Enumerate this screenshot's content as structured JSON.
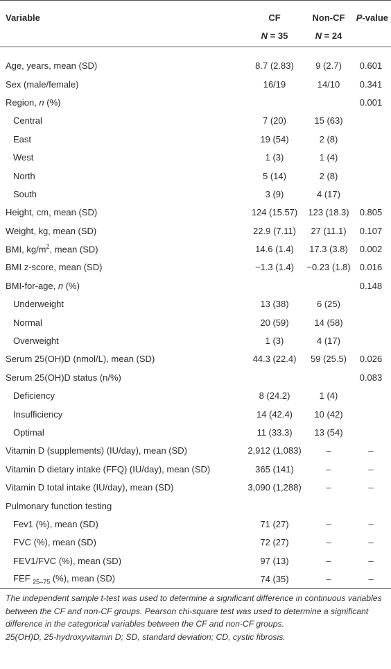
{
  "table": {
    "columns": [
      {
        "title": [
          "Variable"
        ]
      },
      {
        "title": [
          "CF"
        ],
        "n": [
          {
            "i": "N"
          },
          " = 35"
        ]
      },
      {
        "title": [
          "Non-CF"
        ],
        "n": [
          {
            "i": "N"
          },
          " = 24"
        ]
      },
      {
        "title": [
          {
            "i": "P"
          },
          "-value"
        ]
      }
    ],
    "rows": [
      {
        "label": [
          "Age, years, mean (SD)"
        ],
        "indent": false,
        "cells": [
          "8.7 (2.83)",
          "9 (2.7)",
          "0.601"
        ]
      },
      {
        "label": [
          "Sex (male/female)"
        ],
        "indent": false,
        "cells": [
          "16/19",
          "14/10",
          "0.341"
        ]
      },
      {
        "label": [
          "Region, ",
          {
            "i": "n"
          },
          " (%)"
        ],
        "indent": false,
        "cells": [
          null,
          null,
          "0.001"
        ]
      },
      {
        "label": [
          "Central"
        ],
        "indent": true,
        "cells": [
          "7 (20)",
          "15 (63)",
          null
        ]
      },
      {
        "label": [
          "East"
        ],
        "indent": true,
        "cells": [
          "19 (54)",
          "2 (8)",
          null
        ]
      },
      {
        "label": [
          "West"
        ],
        "indent": true,
        "cells": [
          "1 (3)",
          "1 (4)",
          null
        ]
      },
      {
        "label": [
          "North"
        ],
        "indent": true,
        "cells": [
          "5 (14)",
          "2 (8)",
          null
        ]
      },
      {
        "label": [
          "South"
        ],
        "indent": true,
        "cells": [
          "3 (9)",
          "4 (17)",
          null
        ]
      },
      {
        "label": [
          "Height, cm, mean (SD)"
        ],
        "indent": false,
        "cells": [
          "124 (15.57)",
          "123 (18.3)",
          "0.805"
        ]
      },
      {
        "label": [
          "Weight, kg, mean (SD)"
        ],
        "indent": false,
        "cells": [
          "22.9 (7.11)",
          "27 (11.1)",
          "0.107"
        ]
      },
      {
        "label": [
          "BMI, kg/m",
          {
            "sup": "2"
          },
          ", mean (SD)"
        ],
        "indent": false,
        "cells": [
          "14.6 (1.4)",
          "17.3 (3.8)",
          "0.002"
        ]
      },
      {
        "label": [
          "BMI z-score, mean (SD)"
        ],
        "indent": false,
        "cells": [
          "−1.3 (1.4)",
          "−0.23 (1.8)",
          "0.016"
        ]
      },
      {
        "label": [
          "BMI-for-age, ",
          {
            "i": "n"
          },
          " (%)"
        ],
        "indent": false,
        "cells": [
          null,
          null,
          "0.148"
        ]
      },
      {
        "label": [
          "Underweight"
        ],
        "indent": true,
        "cells": [
          "13 (38)",
          "6 (25)",
          null
        ]
      },
      {
        "label": [
          "Normal"
        ],
        "indent": true,
        "cells": [
          "20 (59)",
          "14 (58)",
          null
        ]
      },
      {
        "label": [
          "Overweight"
        ],
        "indent": true,
        "cells": [
          "1 (3)",
          "4 (17)",
          null
        ]
      },
      {
        "label": [
          "Serum 25(OH)D (nmol/L), mean (SD)"
        ],
        "indent": false,
        "cells": [
          "44.3 (22.4)",
          "59 (25.5)",
          "0.026"
        ]
      },
      {
        "label": [
          "Serum 25(OH)D status (n/%)"
        ],
        "indent": false,
        "cells": [
          null,
          null,
          "0.083"
        ]
      },
      {
        "label": [
          "Deficiency"
        ],
        "indent": true,
        "cells": [
          "8 (24.2)",
          "1 (4)",
          null
        ]
      },
      {
        "label": [
          "Insufficiency"
        ],
        "indent": true,
        "cells": [
          "14 (42.4)",
          "10 (42)",
          null
        ]
      },
      {
        "label": [
          "Optimal"
        ],
        "indent": true,
        "cells": [
          "11 (33.3)",
          "13 (54)",
          null
        ]
      },
      {
        "label": [
          "Vitamin D (supplements) (IU/day), mean (SD)"
        ],
        "indent": false,
        "cells": [
          "2,912 (1,083)",
          "–",
          "–"
        ]
      },
      {
        "label": [
          "Vitamin D dietary intake (FFQ) (IU/day), mean (SD)"
        ],
        "indent": false,
        "cells": [
          "365 (141)",
          "–",
          "–"
        ]
      },
      {
        "label": [
          "Vitamin D total intake (IU/day), mean (SD)"
        ],
        "indent": false,
        "cells": [
          "3,090 (1,288)",
          "–",
          "–"
        ]
      },
      {
        "label": [
          "Pulmonary function testing"
        ],
        "indent": false,
        "cells": [
          null,
          null,
          null
        ]
      },
      {
        "label": [
          "Fev1 (%), mean (SD)"
        ],
        "indent": true,
        "cells": [
          "71 (27)",
          "–",
          "–"
        ]
      },
      {
        "label": [
          "FVC (%), mean (SD)"
        ],
        "indent": true,
        "cells": [
          "72 (27)",
          "–",
          "–"
        ]
      },
      {
        "label": [
          "FEV1/FVC (%), mean (SD)"
        ],
        "indent": true,
        "cells": [
          "97 (13)",
          "–",
          "–"
        ]
      },
      {
        "label": [
          "FEF ",
          {
            "sub": "25–75"
          },
          " (%), mean (SD)"
        ],
        "indent": true,
        "cells": [
          "74 (35)",
          "–",
          "–"
        ]
      }
    ],
    "footnotes": [
      "The independent sample t-test was used to determine a significant difference in continuous variables between the CF and non-CF groups. Pearson chi-square test was used to determine a significant difference in the categorical variables between the CF and non-CF groups.",
      "25(OH)D, 25-hydroxyvitamin D; SD, standard deviation; CD, cystic fibrosis."
    ]
  }
}
